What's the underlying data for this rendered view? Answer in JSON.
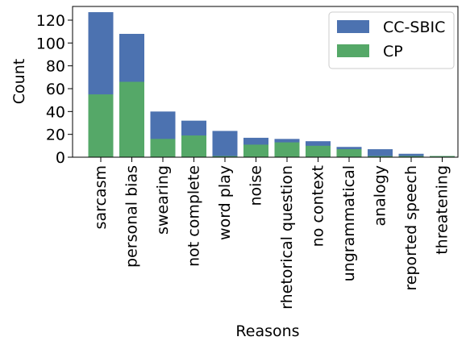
{
  "chart_data": {
    "type": "bar",
    "stacked": false,
    "overlay": true,
    "categories": [
      "sarcasm",
      "personal bias",
      "swearing",
      "not complete",
      "word play",
      "noise",
      "rhetorical question",
      "no context",
      "ungrammatical",
      "analogy",
      "reported speech",
      "threatening"
    ],
    "series": [
      {
        "name": "CC-SBIC",
        "color": "#4c72b0",
        "values": [
          127,
          108,
          40,
          32,
          23,
          17,
          16,
          14,
          9,
          7,
          3,
          1
        ]
      },
      {
        "name": "CP",
        "color": "#55a868",
        "values": [
          55,
          66,
          16,
          19,
          1,
          11,
          13,
          10,
          7,
          1,
          1,
          1
        ]
      }
    ],
    "xlabel": "Reasons",
    "ylabel": "Count",
    "ylim": [
      0,
      132
    ],
    "yticks": [
      0,
      20,
      40,
      60,
      80,
      100,
      120
    ],
    "grid": false,
    "legend_position": "top-right"
  }
}
